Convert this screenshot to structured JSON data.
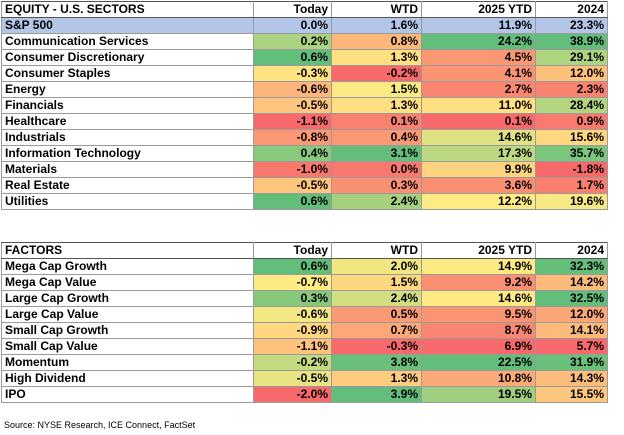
{
  "colors": {
    "header_bg": "#ffffff",
    "highlight_row_bg": "#b4c6e7",
    "scale_low": "#f8696b",
    "scale_mid": "#ffeb84",
    "scale_high": "#63be7b"
  },
  "sectors": {
    "title": "EQUITY - U.S. SECTORS",
    "columns": [
      "Today",
      "WTD",
      "2025 YTD",
      "2024"
    ],
    "benchmark": {
      "name": "S&P 500",
      "values": [
        "0.0%",
        "1.6%",
        "11.9%",
        "23.3%"
      ]
    },
    "rows": [
      {
        "name": "Communication Services",
        "values": [
          "0.2%",
          "0.8%",
          "24.2%",
          "38.9%"
        ]
      },
      {
        "name": "Consumer Discretionary",
        "values": [
          "0.6%",
          "1.3%",
          "4.5%",
          "29.1%"
        ]
      },
      {
        "name": "Consumer Staples",
        "values": [
          "-0.3%",
          "-0.2%",
          "4.1%",
          "12.0%"
        ]
      },
      {
        "name": "Energy",
        "values": [
          "-0.6%",
          "1.5%",
          "2.7%",
          "2.3%"
        ]
      },
      {
        "name": "Financials",
        "values": [
          "-0.5%",
          "1.3%",
          "11.0%",
          "28.4%"
        ]
      },
      {
        "name": "Healthcare",
        "values": [
          "-1.1%",
          "0.1%",
          "0.1%",
          "0.9%"
        ]
      },
      {
        "name": "Industrials",
        "values": [
          "-0.8%",
          "0.4%",
          "14.6%",
          "15.6%"
        ]
      },
      {
        "name": "Information Technology",
        "values": [
          "0.4%",
          "3.1%",
          "17.3%",
          "35.7%"
        ]
      },
      {
        "name": "Materials",
        "values": [
          "-1.0%",
          "0.0%",
          "9.9%",
          "-1.8%"
        ]
      },
      {
        "name": "Real Estate",
        "values": [
          "-0.5%",
          "0.3%",
          "3.6%",
          "1.7%"
        ]
      },
      {
        "name": "Utilities",
        "values": [
          "0.6%",
          "2.4%",
          "12.2%",
          "19.6%"
        ]
      }
    ]
  },
  "factors": {
    "title": "FACTORS",
    "columns": [
      "Today",
      "WTD",
      "2025 YTD",
      "2024"
    ],
    "rows": [
      {
        "name": "Mega Cap Growth",
        "values": [
          "0.6%",
          "2.0%",
          "14.9%",
          "32.3%"
        ]
      },
      {
        "name": "Mega Cap Value",
        "values": [
          "-0.7%",
          "1.5%",
          "9.2%",
          "14.2%"
        ]
      },
      {
        "name": "Large Cap Growth",
        "values": [
          "0.3%",
          "2.4%",
          "14.6%",
          "32.5%"
        ]
      },
      {
        "name": "Large Cap Value",
        "values": [
          "-0.6%",
          "0.5%",
          "9.5%",
          "12.0%"
        ]
      },
      {
        "name": "Small Cap Growth",
        "values": [
          "-0.9%",
          "0.7%",
          "8.7%",
          "14.1%"
        ]
      },
      {
        "name": "Small Cap Value",
        "values": [
          "-1.1%",
          "-0.3%",
          "6.9%",
          "5.7%"
        ]
      },
      {
        "name": "Momentum",
        "values": [
          "-0.2%",
          "3.8%",
          "22.5%",
          "31.9%"
        ]
      },
      {
        "name": "High Dividend",
        "values": [
          "-0.5%",
          "1.3%",
          "10.8%",
          "14.3%"
        ]
      },
      {
        "name": "IPO",
        "values": [
          "-2.0%",
          "3.9%",
          "19.5%",
          "15.5%"
        ]
      }
    ]
  },
  "source": "Source: NYSE Research, ICE Connect, FactSet"
}
